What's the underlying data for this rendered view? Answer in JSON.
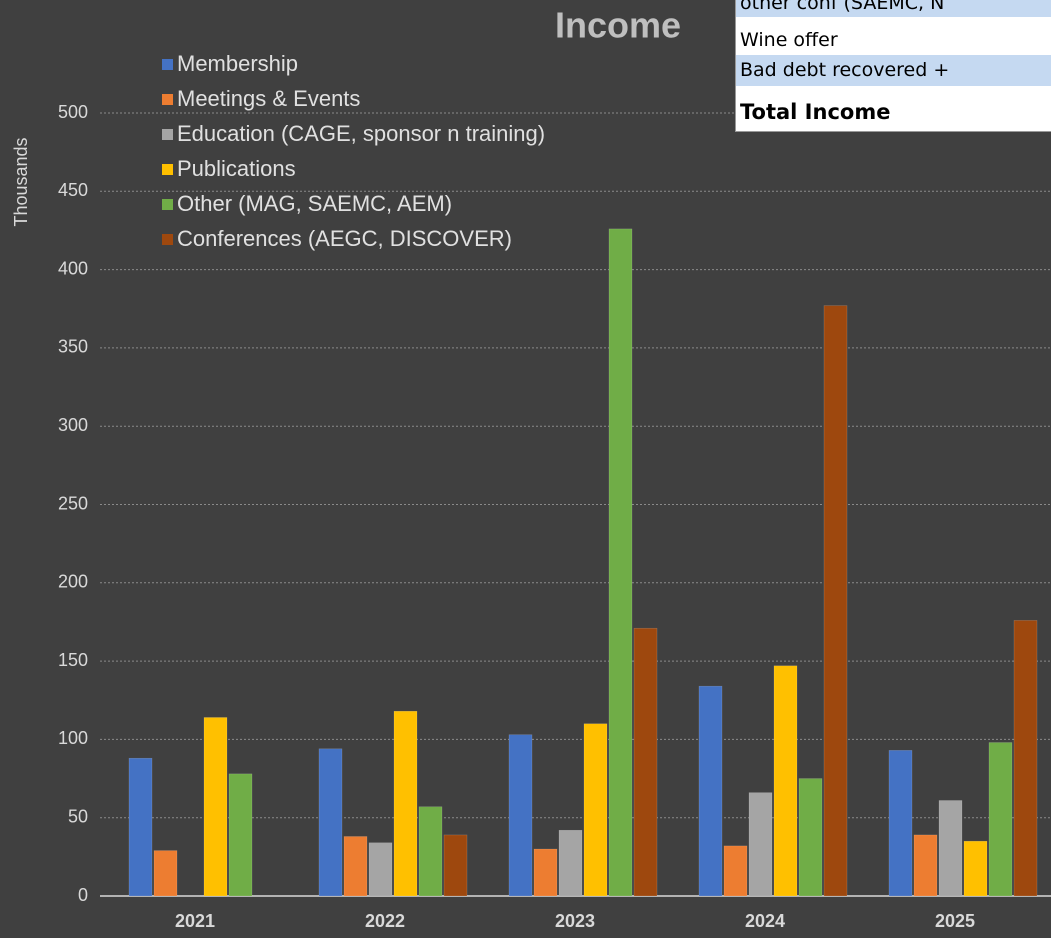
{
  "chart_data": {
    "type": "bar",
    "title": "Income",
    "y_axis_label": "Thousands",
    "categories": [
      "2021",
      "2022",
      "2023",
      "2024",
      "2025"
    ],
    "series": [
      {
        "name": "Membership",
        "color": "#4472c4",
        "values": [
          88,
          94,
          103,
          134,
          93
        ]
      },
      {
        "name": "Meetings & Events",
        "color": "#ed7d31",
        "values": [
          29,
          38,
          30,
          32,
          39
        ]
      },
      {
        "name": "Education (CAGE, sponsor n training)",
        "color": "#a5a5a5",
        "values": [
          0,
          34,
          42,
          66,
          61
        ]
      },
      {
        "name": "Publications",
        "color": "#ffc000",
        "values": [
          114,
          118,
          110,
          147,
          35
        ]
      },
      {
        "name": "Other (MAG, SAEMC, AEM)",
        "color": "#70ad47",
        "values": [
          78,
          57,
          426,
          75,
          98
        ]
      },
      {
        "name": "Conferences (AEGC, DISCOVER)",
        "color": "#9e480e",
        "values": [
          0,
          39,
          171,
          377,
          176
        ]
      }
    ],
    "ylim": [
      0,
      500
    ],
    "yticks": [
      0,
      50,
      100,
      150,
      200,
      250,
      300,
      350,
      400,
      450,
      500
    ],
    "grid": true,
    "legend": "top-left"
  },
  "overlay_table": {
    "rows": [
      "other conf (SAEMC, N",
      "Wine offer",
      "Bad debt recovered +",
      "Total Income"
    ]
  }
}
